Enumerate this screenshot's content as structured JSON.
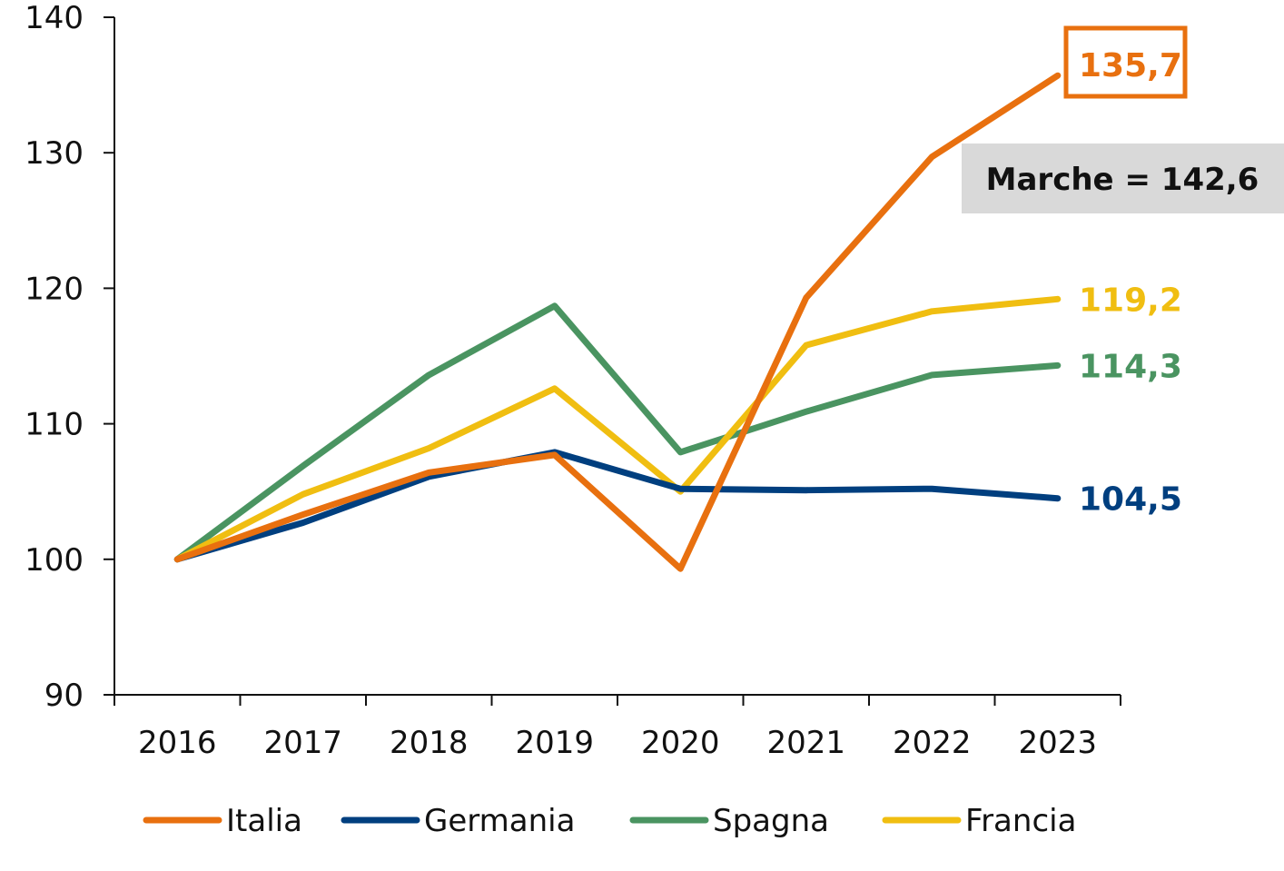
{
  "chart_data": {
    "type": "line",
    "title": "",
    "xlabel": "",
    "ylabel": "",
    "categories": [
      "2016",
      "2017",
      "2018",
      "2019",
      "2020",
      "2021",
      "2022",
      "2023"
    ],
    "ylim": [
      90,
      140
    ],
    "yticks": [
      "90",
      "100",
      "110",
      "120",
      "130",
      "140"
    ],
    "grid": false,
    "legend_position": "bottom",
    "series": [
      {
        "name": "Italia",
        "color": "#E8700F",
        "values": [
          100,
          103.3,
          106.4,
          107.7,
          99.3,
          119.3,
          129.7,
          135.7
        ]
      },
      {
        "name": "Germania",
        "color": "#003F7F",
        "values": [
          100,
          102.7,
          106.1,
          107.9,
          105.2,
          105.1,
          105.2,
          104.5
        ]
      },
      {
        "name": "Spagna",
        "color": "#4A9461",
        "values": [
          100,
          106.9,
          113.6,
          118.7,
          107.9,
          110.9,
          113.6,
          114.3
        ]
      },
      {
        "name": "Francia",
        "color": "#F0BE11",
        "values": [
          100,
          104.8,
          108.2,
          112.6,
          105.0,
          115.8,
          118.3,
          119.2
        ]
      }
    ],
    "end_labels": [
      {
        "text": "135,7",
        "color": "#E8700F",
        "boxed": true
      },
      {
        "text": "104,5",
        "color": "#003F7F",
        "boxed": false
      },
      {
        "text": "114,3",
        "color": "#4A9461",
        "boxed": false
      },
      {
        "text": "119,2",
        "color": "#F0BE11",
        "boxed": false
      }
    ],
    "annotation": {
      "text": "Marche = 142,6",
      "background": "#D9D9D9"
    }
  }
}
